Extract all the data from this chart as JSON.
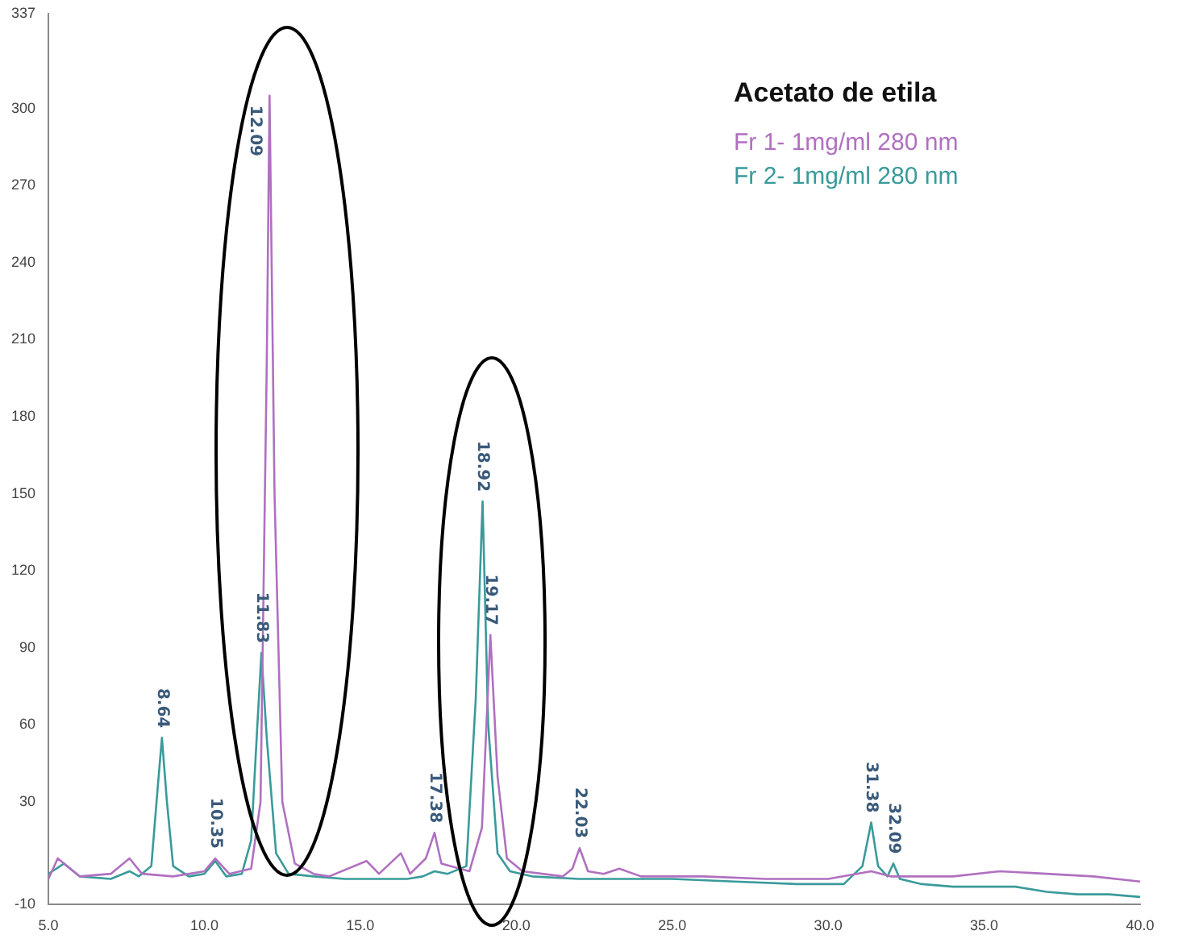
{
  "chart_data": {
    "type": "line",
    "legend_title": "Acetato de etila",
    "legend": "top right",
    "grid": false,
    "marker": "none",
    "line_style": "solid",
    "xlim": [
      5,
      40
    ],
    "xticks": [
      {
        "value": 5,
        "label": "5.0"
      },
      {
        "value": 10,
        "label": "10.0"
      },
      {
        "value": 15,
        "label": "15.0"
      },
      {
        "value": 20,
        "label": "20.0"
      },
      {
        "value": 25,
        "label": "25.0"
      },
      {
        "value": 30,
        "label": "30.0"
      },
      {
        "value": 35,
        "label": "35.0"
      },
      {
        "value": 40,
        "label": "40.0"
      }
    ],
    "ylim": [
      -10,
      337
    ],
    "yticks": [
      -10,
      30,
      60,
      90,
      120,
      150,
      180,
      210,
      240,
      270,
      300,
      337
    ],
    "series": [
      {
        "name": "Fr 1- 1mg/ml 280 nm",
        "color": "#b070c0",
        "x": [
          5.0,
          5.3,
          6,
          7,
          7.6,
          8.0,
          9,
          10,
          10.35,
          10.8,
          11.5,
          11.8,
          12.0,
          12.09,
          12.25,
          12.5,
          12.9,
          13.5,
          14,
          15.2,
          15.6,
          16.3,
          16.6,
          17.1,
          17.38,
          17.6,
          18.5,
          18.9,
          19.17,
          19.4,
          19.7,
          20.2,
          21.5,
          21.8,
          22.03,
          22.3,
          22.8,
          23.3,
          24,
          26,
          28,
          30,
          31.38,
          32,
          34,
          35.5,
          37,
          38.5,
          40
        ],
        "values": [
          0,
          8,
          1,
          2,
          8,
          2,
          1,
          3,
          8,
          2,
          4,
          30,
          200,
          305,
          150,
          30,
          6,
          2,
          1,
          7,
          2,
          10,
          2,
          8,
          18,
          6,
          3,
          20,
          95,
          40,
          8,
          3,
          1,
          4,
          12,
          3,
          2,
          4,
          1,
          1,
          0,
          0,
          3,
          1,
          1,
          3,
          2,
          1,
          -1
        ]
      },
      {
        "name": "Fr 2- 1mg/ml 280 nm",
        "color": "#3a9a9a",
        "x": [
          5.0,
          5.5,
          6.0,
          7.0,
          7.6,
          7.9,
          8.3,
          8.5,
          8.64,
          8.8,
          9.0,
          9.5,
          10.0,
          10.35,
          10.7,
          11.2,
          11.5,
          11.7,
          11.83,
          12.0,
          12.3,
          12.7,
          13.5,
          14.5,
          15.5,
          16.5,
          17.0,
          17.38,
          17.8,
          18.4,
          18.7,
          18.92,
          19.1,
          19.4,
          19.8,
          20.5,
          22,
          23,
          25,
          27,
          29,
          30.5,
          31.1,
          31.38,
          31.6,
          31.9,
          32.09,
          32.3,
          33,
          34,
          35,
          36,
          37,
          38,
          39,
          40
        ],
        "values": [
          2,
          6,
          1,
          0,
          3,
          1,
          5,
          35,
          55,
          30,
          5,
          1,
          2,
          7,
          1,
          2,
          15,
          60,
          88,
          55,
          10,
          2,
          1,
          0,
          0,
          0,
          1,
          3,
          2,
          5,
          70,
          147,
          60,
          10,
          3,
          1,
          0,
          0,
          0,
          -1,
          -2,
          -2,
          5,
          22,
          5,
          1,
          6,
          0,
          -2,
          -3,
          -3,
          -3,
          -5,
          -6,
          -6,
          -7
        ]
      }
    ],
    "annotations": [
      {
        "text": "8.64",
        "x": 8.64,
        "y": 55
      },
      {
        "text": "10.35",
        "x": 10.35,
        "y": 8
      },
      {
        "text": "11.83",
        "x": 11.83,
        "y": 88
      },
      {
        "text": "12.09",
        "x": 12.09,
        "y": 305
      },
      {
        "text": "17.38",
        "x": 17.38,
        "y": 18
      },
      {
        "text": "18.92",
        "x": 18.92,
        "y": 147
      },
      {
        "text": "19.17",
        "x": 19.17,
        "y": 95
      },
      {
        "text": "22.03",
        "x": 22.03,
        "y": 12
      },
      {
        "text": "31.38",
        "x": 31.38,
        "y": 22
      },
      {
        "text": "32.09",
        "x": 32.09,
        "y": 6
      }
    ]
  }
}
